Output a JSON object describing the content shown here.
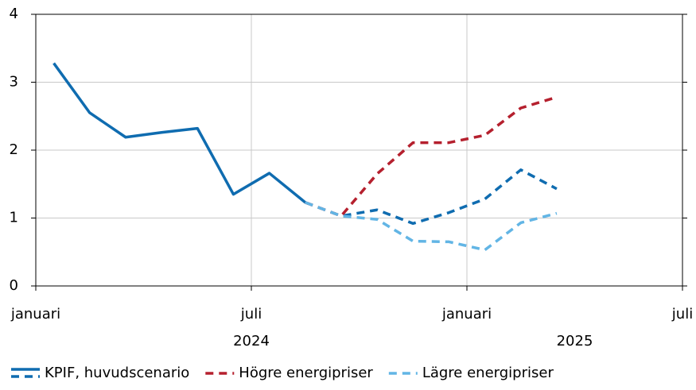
{
  "chart_data": {
    "type": "line",
    "categories": [
      "januari",
      null,
      null,
      null,
      null,
      null,
      "juli",
      null,
      null,
      null,
      null,
      null,
      "januari",
      null,
      null,
      null,
      null,
      null
    ],
    "category_groups": [
      {
        "name": "2024",
        "count": 12
      },
      {
        "name": "2025",
        "count": 6
      }
    ],
    "series": [
      {
        "name": "KPIF, huvudscenario",
        "color": "#0f6cb0",
        "dash_from": 7,
        "values": [
          3.28,
          2.55,
          2.19,
          2.26,
          2.32,
          1.35,
          1.66,
          1.23,
          1.03,
          1.12,
          0.92,
          1.08,
          1.28,
          1.71,
          1.43,
          null,
          null,
          null
        ]
      },
      {
        "name": "Högre energipriser",
        "color": "#b5202e",
        "dashed": true,
        "values": [
          null,
          null,
          null,
          null,
          null,
          null,
          null,
          1.23,
          1.03,
          1.65,
          2.11,
          2.11,
          2.22,
          2.62,
          2.78,
          null,
          null,
          null
        ]
      },
      {
        "name": "Lägre energipriser",
        "color": "#62b5e5",
        "dashed": true,
        "values": [
          null,
          null,
          null,
          null,
          null,
          null,
          null,
          1.23,
          1.03,
          0.98,
          0.66,
          0.65,
          0.53,
          0.93,
          1.07,
          null,
          null,
          null
        ]
      }
    ],
    "ylim": [
      0,
      4
    ],
    "yticks": [
      0,
      1,
      2,
      3,
      4
    ],
    "grid": true,
    "legend": "bottom"
  }
}
